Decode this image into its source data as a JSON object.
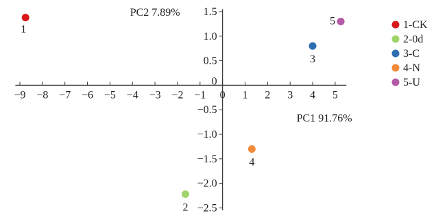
{
  "chart_data": {
    "type": "scatter",
    "xlabel": "PC1 91.76%",
    "ylabel": "PC2 7.89%",
    "xlim": [
      -9.2,
      5.5
    ],
    "ylim": [
      -2.55,
      1.55
    ],
    "x_ticks": [
      -9,
      -8,
      -7,
      -6,
      -5,
      -4,
      -3,
      -2,
      -1,
      0,
      1,
      2,
      3,
      4,
      5
    ],
    "x_tick_labels": [
      "−9",
      "−8",
      "−7",
      "−6",
      "−5",
      "−4",
      "−3",
      "−2",
      "−1",
      "0",
      "1",
      "2",
      "3",
      "4",
      "5"
    ],
    "y_ticks": [
      -2.5,
      -2.0,
      -1.5,
      -1.0,
      -0.5,
      0,
      0.5,
      1.0,
      1.5
    ],
    "y_tick_labels": [
      "−2.5",
      "−2.0",
      "−1.5",
      "−1.0",
      "−0.5",
      "0",
      "0.5",
      "1.0",
      "1.5"
    ],
    "grid": false,
    "legend_position": "top-right",
    "series": [
      {
        "name": "1-CK",
        "label": "1",
        "color": "#d7191c",
        "x": -8.75,
        "y": 1.38
      },
      {
        "name": "2-0d",
        "label": "2",
        "color": "#9fd46a",
        "x": -1.65,
        "y": -2.22
      },
      {
        "name": "3-C",
        "label": "3",
        "color": "#2d6db1",
        "x": 4.0,
        "y": 0.8
      },
      {
        "name": "4-N",
        "label": "4",
        "color": "#f08a3a",
        "x": 1.3,
        "y": -1.3
      },
      {
        "name": "5-U",
        "label": "5",
        "color": "#b35aa8",
        "x": 5.25,
        "y": 1.3
      }
    ]
  }
}
